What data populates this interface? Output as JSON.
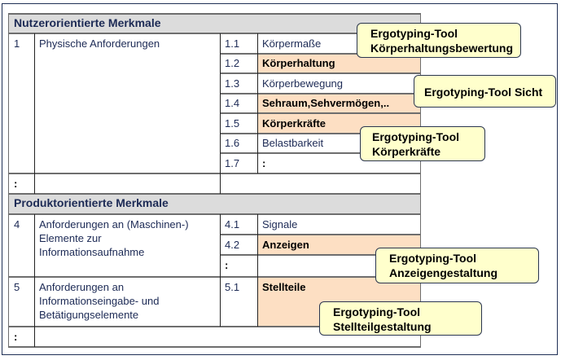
{
  "sections": [
    {
      "title": "Nutzerorientierte Merkmale"
    },
    {
      "title": "Produktorientierte Merkmale"
    }
  ],
  "rows": {
    "r1": {
      "num": "1",
      "label": "Physische Anforderungen"
    },
    "r1items": [
      {
        "num": "1.1",
        "label": "Körpermaße"
      },
      {
        "num": "1.2",
        "label": "Körperhaltung"
      },
      {
        "num": "1.3",
        "label": "Körperbewegung"
      },
      {
        "num": "1.4",
        "label": "Sehraum,Sehvermögen,.."
      },
      {
        "num": "1.5",
        "label": "Körperkräfte"
      },
      {
        "num": "1.6",
        "label": "Belastbarkeit"
      },
      {
        "num": "1.7",
        "label": ":"
      }
    ],
    "ellipsis": ":",
    "r4": {
      "num": "4",
      "label": "Anforderungen an (Maschinen-) Elemente zur Informationsaufnahme"
    },
    "r4items": [
      {
        "num": "4.1",
        "label": "Signale"
      },
      {
        "num": "4.2",
        "label": "Anzeigen"
      },
      {
        "num": ":",
        "label": ""
      }
    ],
    "r5": {
      "num": "5",
      "label": "Anforderungen an Informationseingabe- und Betätigungselemente"
    },
    "r5items": [
      {
        "num": "5.1",
        "label": "Stellteile"
      }
    ]
  },
  "callouts": [
    {
      "line1": "Ergotyping-Tool",
      "line2": "Körperhaltungsbewertung"
    },
    {
      "line1": "Ergotyping-Tool Sicht",
      "line2": ""
    },
    {
      "line1": "Ergotyping-Tool",
      "line2": "Körperkräfte"
    },
    {
      "line1": "Ergotyping-Tool",
      "line2": "Anzeigengestaltung"
    },
    {
      "line1": "Ergotyping-Tool",
      "line2": "Stellteilgestaltung"
    }
  ],
  "colors": {
    "highlight": "#fddfc3",
    "callout": "#ffffcc",
    "header": "#dcdcdc"
  }
}
